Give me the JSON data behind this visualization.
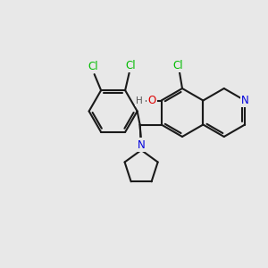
{
  "bg_color": "#e8e8e8",
  "bond_color": "#1a1a1a",
  "N_color": "#0000dd",
  "O_color": "#dd0000",
  "Cl_color": "#00bb00",
  "H_color": "#555555",
  "lw": 1.5,
  "fig_width": 3.0,
  "fig_height": 3.0,
  "dpi": 100,
  "xlim": [
    0,
    10
  ],
  "ylim": [
    0,
    10
  ]
}
